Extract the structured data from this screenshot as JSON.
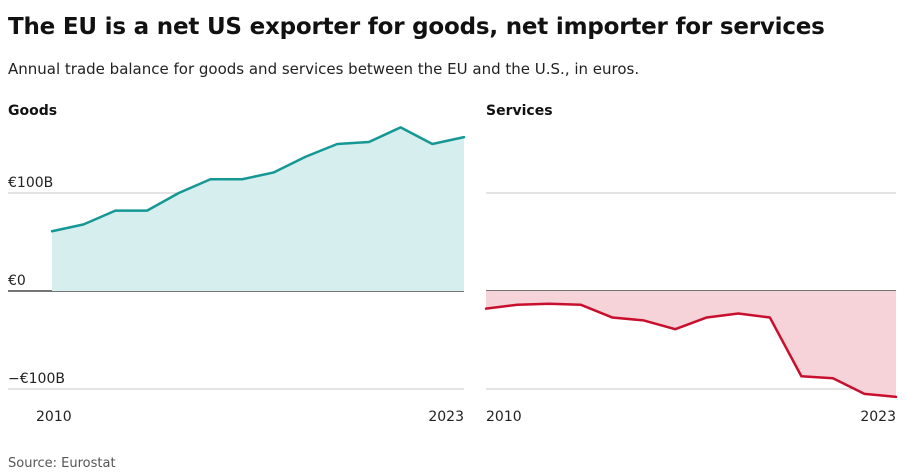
{
  "title": "The EU is a net US exporter for goods, net importer for services",
  "subtitle": "Annual trade balance for goods and services between the EU and the U.S., in euros.",
  "source": "Source: Eurostat",
  "chart_data": [
    {
      "type": "area",
      "title": "Goods",
      "x": [
        2010,
        2011,
        2012,
        2013,
        2014,
        2015,
        2016,
        2017,
        2018,
        2019,
        2020,
        2021,
        2022,
        2023
      ],
      "values": [
        61,
        68,
        82,
        82,
        100,
        114,
        114,
        121,
        137,
        150,
        152,
        167,
        150,
        157
      ],
      "x_tick_labels": [
        "2010",
        "2023"
      ],
      "y_ticks": [
        -100,
        0,
        100
      ],
      "y_tick_labels": [
        "−€100B",
        "€0",
        "€100B"
      ],
      "ylim": [
        -100,
        160
      ],
      "color": "#159895",
      "fill": "#d6eeed"
    },
    {
      "type": "area",
      "title": "Services",
      "x": [
        2010,
        2011,
        2012,
        2013,
        2014,
        2015,
        2016,
        2017,
        2018,
        2019,
        2020,
        2021,
        2022,
        2023
      ],
      "values": [
        -18,
        -14,
        -13,
        -14,
        -27,
        -30,
        -39,
        -27,
        -23,
        -27,
        -87,
        -89,
        -105,
        -108
      ],
      "x_tick_labels": [
        "2010",
        "2023"
      ],
      "y_ticks": [
        -100,
        0,
        100
      ],
      "ylim": [
        -100,
        160
      ],
      "color": "#c8102e",
      "fill": "#f6d3d8"
    }
  ]
}
